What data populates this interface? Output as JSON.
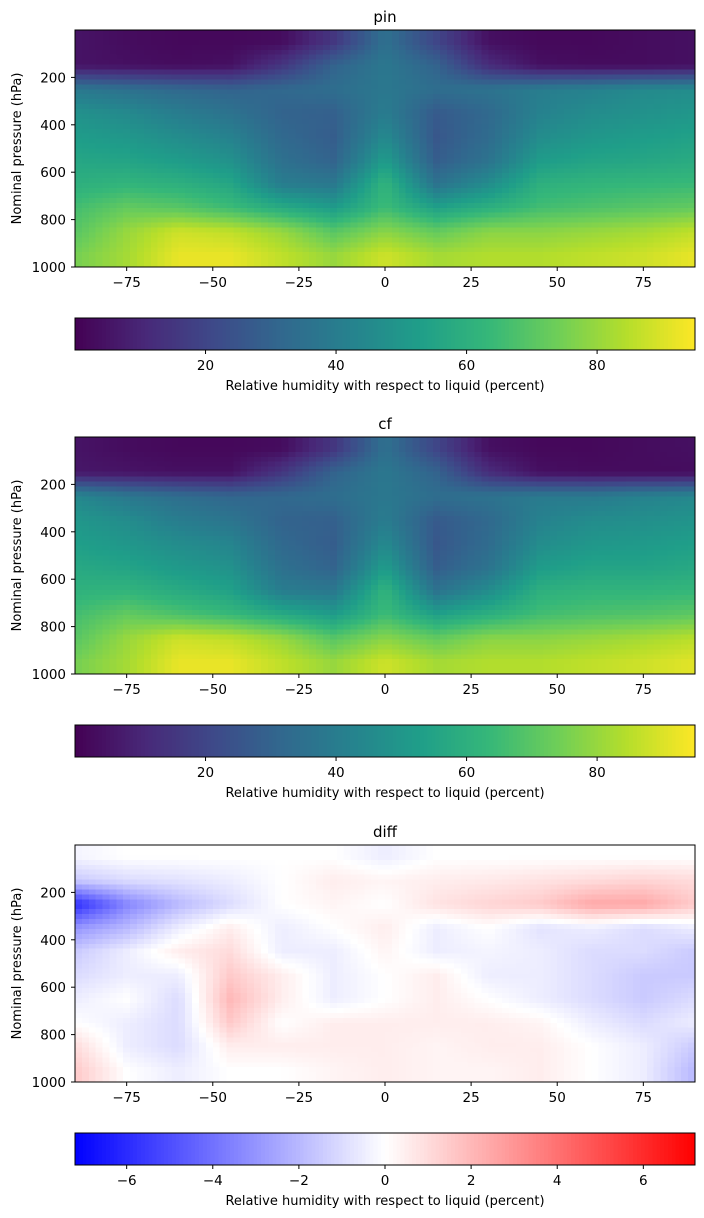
{
  "colors": {
    "viridis": [
      "#440154",
      "#482878",
      "#3e4989",
      "#31688e",
      "#26828e",
      "#1f9e89",
      "#35b779",
      "#6ece58",
      "#b5de2b",
      "#fde725"
    ],
    "bwr": [
      "#0000ff",
      "#ffffff",
      "#ff0000"
    ]
  },
  "chart_data": [
    {
      "type": "heatmap",
      "title": "pin",
      "xlabel": "",
      "ylabel": "Nominal pressure (hPa)",
      "xlim": [
        -90,
        90
      ],
      "ylim": [
        1000,
        0
      ],
      "xticks": [
        -75,
        -50,
        -25,
        0,
        25,
        50,
        75
      ],
      "yticks": [
        200,
        400,
        600,
        800,
        1000
      ],
      "colormap": "viridis",
      "colorbar": {
        "label": "Relative humidity with respect to liquid (percent)",
        "range": [
          0,
          95
        ],
        "ticks": [
          20,
          40,
          60,
          80
        ],
        "orientation": "horizontal"
      },
      "lat": [
        -90,
        -75,
        -60,
        -45,
        -30,
        -15,
        0,
        15,
        30,
        45,
        60,
        75,
        90
      ],
      "levels": [
        50,
        150,
        250,
        350,
        450,
        550,
        650,
        750,
        850,
        950
      ],
      "values": [
        [
          5,
          3,
          2,
          2,
          3,
          15,
          35,
          20,
          4,
          2,
          2,
          3,
          4
        ],
        [
          5,
          4,
          3,
          4,
          15,
          30,
          38,
          30,
          12,
          4,
          3,
          3,
          4
        ],
        [
          38,
          35,
          32,
          30,
          32,
          34,
          38,
          34,
          36,
          40,
          42,
          45,
          46
        ],
        [
          48,
          45,
          40,
          36,
          30,
          29,
          40,
          27,
          32,
          42,
          46,
          48,
          50
        ],
        [
          52,
          50,
          46,
          42,
          32,
          28,
          45,
          26,
          33,
          46,
          50,
          52,
          54
        ],
        [
          56,
          55,
          52,
          48,
          35,
          30,
          52,
          28,
          36,
          52,
          55,
          56,
          58
        ],
        [
          60,
          62,
          60,
          56,
          40,
          38,
          62,
          36,
          46,
          60,
          62,
          63,
          64
        ],
        [
          66,
          72,
          70,
          65,
          58,
          52,
          65,
          54,
          60,
          66,
          68,
          70,
          72
        ],
        [
          70,
          80,
          88,
          86,
          80,
          70,
          78,
          72,
          78,
          78,
          80,
          82,
          86
        ],
        [
          75,
          82,
          92,
          92,
          86,
          80,
          88,
          82,
          84,
          84,
          86,
          88,
          92
        ]
      ]
    },
    {
      "type": "heatmap",
      "title": "cf",
      "xlabel": "",
      "ylabel": "Nominal pressure (hPa)",
      "xlim": [
        -90,
        90
      ],
      "ylim": [
        1000,
        0
      ],
      "xticks": [
        -75,
        -50,
        -25,
        0,
        25,
        50,
        75
      ],
      "yticks": [
        200,
        400,
        600,
        800,
        1000
      ],
      "colormap": "viridis",
      "colorbar": {
        "label": "Relative humidity with respect to liquid (percent)",
        "range": [
          0,
          95
        ],
        "ticks": [
          20,
          40,
          60,
          80
        ],
        "orientation": "horizontal"
      },
      "lat": [
        -90,
        -75,
        -60,
        -45,
        -30,
        -15,
        0,
        15,
        30,
        45,
        60,
        75,
        90
      ],
      "levels": [
        50,
        150,
        250,
        350,
        450,
        550,
        650,
        750,
        850,
        950
      ],
      "values": [
        [
          5,
          3,
          2,
          2,
          3,
          15,
          35,
          20,
          4,
          2,
          2,
          3,
          4
        ],
        [
          6,
          5,
          4,
          4,
          15,
          30,
          38,
          30,
          12,
          4,
          3,
          3,
          3
        ],
        [
          44,
          38,
          34,
          31,
          32,
          34,
          38,
          34,
          36,
          39,
          39,
          42,
          44
        ],
        [
          50,
          46,
          40,
          37,
          30,
          29,
          40,
          27,
          32,
          42,
          46,
          47,
          49
        ],
        [
          53,
          50,
          46,
          43,
          32,
          28,
          45,
          26,
          33,
          46,
          50,
          51,
          53
        ],
        [
          57,
          55,
          51,
          48,
          35,
          30,
          52,
          28,
          36,
          52,
          55,
          55,
          57
        ],
        [
          61,
          62,
          58,
          54,
          40,
          38,
          62,
          36,
          46,
          60,
          62,
          62,
          63
        ],
        [
          66,
          72,
          68,
          64,
          58,
          52,
          65,
          54,
          60,
          66,
          68,
          69,
          71
        ],
        [
          70,
          80,
          88,
          86,
          80,
          70,
          78,
          72,
          78,
          78,
          80,
          82,
          85
        ],
        [
          75,
          82,
          92,
          92,
          86,
          80,
          88,
          82,
          84,
          84,
          86,
          88,
          91
        ]
      ]
    },
    {
      "type": "heatmap",
      "title": "diff",
      "xlabel": "",
      "ylabel": "Nominal pressure (hPa)",
      "xlim": [
        -90,
        90
      ],
      "ylim": [
        1000,
        0
      ],
      "xticks": [
        -75,
        -50,
        -25,
        0,
        25,
        50,
        75
      ],
      "yticks": [
        200,
        400,
        600,
        800,
        1000
      ],
      "colormap": "bwr",
      "colorbar": {
        "label": "Relative humidity with respect to liquid (percent)",
        "range": [
          -7.2,
          7.2
        ],
        "ticks": [
          -6,
          -4,
          -2,
          0,
          2,
          4,
          6
        ],
        "orientation": "horizontal"
      },
      "lat": [
        -90,
        -75,
        -60,
        -45,
        -30,
        -15,
        0,
        15,
        30,
        45,
        60,
        75,
        90
      ],
      "levels": [
        50,
        150,
        250,
        350,
        450,
        550,
        650,
        750,
        850,
        950
      ],
      "values": [
        [
          -0.3,
          0,
          0,
          0,
          0,
          0,
          -0.5,
          0,
          0,
          0,
          0,
          0,
          0
        ],
        [
          -1.5,
          -1,
          -0.8,
          -0.5,
          0,
          0.5,
          0.3,
          0.5,
          0.6,
          0.8,
          1.0,
          1.2,
          1.0
        ],
        [
          -6.0,
          -3.5,
          -2.0,
          -1.0,
          0,
          0.3,
          0,
          0.8,
          1.2,
          1.5,
          2.5,
          2.5,
          1.5
        ],
        [
          -3.0,
          -2.0,
          -0.5,
          0.5,
          -0.5,
          0,
          0.5,
          -0.5,
          0,
          -0.8,
          -0.5,
          -1.0,
          -0.5
        ],
        [
          -1.5,
          -0.5,
          0.5,
          1.0,
          -0.5,
          -0.5,
          0.3,
          -0.5,
          -0.3,
          -0.5,
          -1.0,
          -1.0,
          -1.5
        ],
        [
          -1.0,
          -0.5,
          -0.5,
          1.5,
          0.5,
          -0.5,
          0,
          0.5,
          -0.5,
          -0.5,
          -1.0,
          -1.5,
          -1.5
        ],
        [
          -0.5,
          0,
          -1.0,
          2.0,
          0.5,
          -0.5,
          0,
          0.5,
          0,
          -0.5,
          -1.0,
          -1.5,
          -1.0
        ],
        [
          0,
          -0.5,
          -1.0,
          1.5,
          0,
          0.5,
          0.5,
          0.5,
          0.5,
          0.3,
          -0.5,
          -1.0,
          -0.5
        ],
        [
          1.0,
          -0.5,
          -1.0,
          0.5,
          0.5,
          0.5,
          0.5,
          0.3,
          0.5,
          0.5,
          0,
          -0.5,
          -1.5
        ],
        [
          1.5,
          0,
          -0.5,
          0,
          0,
          0.3,
          0.5,
          0.3,
          0.3,
          0.5,
          0,
          -0.5,
          -2.0
        ]
      ]
    }
  ]
}
